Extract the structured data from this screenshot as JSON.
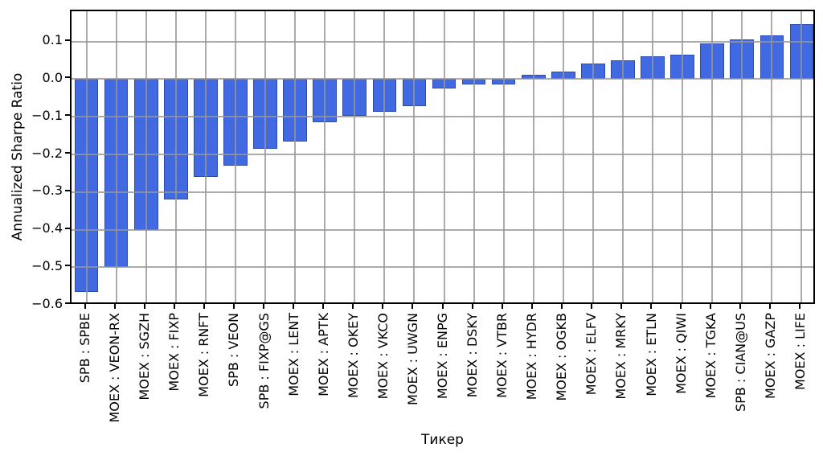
{
  "chart_data": {
    "type": "bar",
    "title": "",
    "xlabel": "Тикер",
    "ylabel": "Annualized Sharpe Ratio",
    "categories": [
      "SPB : SPBE",
      "MOEX : VEON-RX",
      "MOEX : SGZH",
      "MOEX : FIXP",
      "MOEX : RNFT",
      "SPB : VEON",
      "SPB : FIXP@GS",
      "MOEX : LENT",
      "MOEX : APTK",
      "MOEX : OKEY",
      "MOEX : VKCO",
      "MOEX : UWGN",
      "MOEX : ENPG",
      "MOEX : DSKY",
      "MOEX : VTBR",
      "MOEX : HYDR",
      "MOEX : OGKB",
      "MOEX : ELFV",
      "MOEX : MRKY",
      "MOEX : ETLN",
      "MOEX : QIWI",
      "MOEX : TGKA",
      "SPB : CIAN@US",
      "MOEX : GAZP",
      "MOEX : LIFE"
    ],
    "values": [
      -0.565,
      -0.5,
      -0.4,
      -0.32,
      -0.26,
      -0.23,
      -0.185,
      -0.165,
      -0.115,
      -0.098,
      -0.087,
      -0.072,
      -0.025,
      -0.014,
      -0.013,
      0.012,
      0.021,
      0.042,
      0.051,
      0.061,
      0.066,
      0.094,
      0.105,
      0.117,
      0.146
    ],
    "yticks": [
      0.1,
      0.0,
      -0.1,
      -0.2,
      -0.3,
      -0.4,
      -0.5,
      -0.6
    ],
    "ylim": [
      -0.6015,
      0.1805
    ],
    "grid": true,
    "legend": "none",
    "bar_color": "#4169E1",
    "grid_color": "#969696",
    "axis_color": "#000000",
    "background": "#ffffff"
  }
}
